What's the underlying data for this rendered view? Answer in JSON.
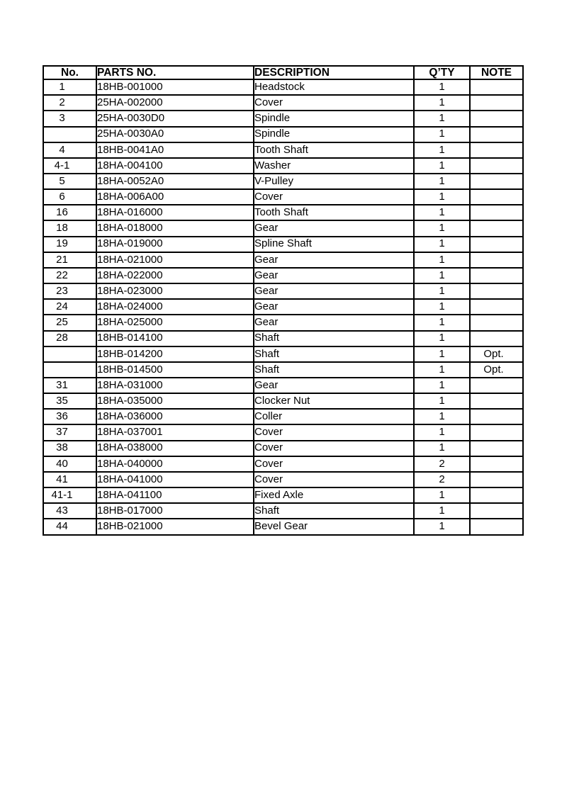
{
  "page": {
    "background_color": "#ffffff",
    "text_color": "#000000",
    "table_border_color": "#000000"
  },
  "table": {
    "headers": [
      "No.",
      "PARTS NO.",
      "DESCRIPTION",
      "Q’TY",
      "NOTE"
    ],
    "rows": [
      {
        "no": "1",
        "part": "18HB-001000",
        "desc": "Headstock",
        "qty": "1",
        "note": ""
      },
      {
        "no": "2",
        "part": "25HA-002000",
        "desc": "Cover",
        "qty": "1",
        "note": ""
      },
      {
        "no": "3",
        "part": "25HA-0030D0",
        "desc": "Spindle",
        "qty": "1",
        "note": ""
      },
      {
        "no": "",
        "part": "25HA-0030A0",
        "desc": "Spindle",
        "qty": "1",
        "note": ""
      },
      {
        "no": "4",
        "part": "18HB-0041A0",
        "desc": "Tooth Shaft",
        "qty": "1",
        "note": ""
      },
      {
        "no": "4-1",
        "part": "18HA-004100",
        "desc": "Washer",
        "qty": "1",
        "note": ""
      },
      {
        "no": "5",
        "part": "18HA-0052A0",
        "desc": "V-Pulley",
        "qty": "1",
        "note": ""
      },
      {
        "no": "6",
        "part": "18HA-006A00",
        "desc": "Cover",
        "qty": "1",
        "note": ""
      },
      {
        "no": "16",
        "part": "18HA-016000",
        "desc": "Tooth Shaft",
        "qty": "1",
        "note": ""
      },
      {
        "no": "18",
        "part": "18HA-018000",
        "desc": "Gear",
        "qty": "1",
        "note": ""
      },
      {
        "no": "19",
        "part": "18HA-019000",
        "desc": "Spline Shaft",
        "qty": "1",
        "note": ""
      },
      {
        "no": "21",
        "part": "18HA-021000",
        "desc": "Gear",
        "qty": "1",
        "note": ""
      },
      {
        "no": "22",
        "part": "18HA-022000",
        "desc": "Gear",
        "qty": "1",
        "note": ""
      },
      {
        "no": "23",
        "part": "18HA-023000",
        "desc": "Gear",
        "qty": "1",
        "note": ""
      },
      {
        "no": "24",
        "part": "18HA-024000",
        "desc": "Gear",
        "qty": "1",
        "note": ""
      },
      {
        "no": "25",
        "part": "18HA-025000",
        "desc": "Gear",
        "qty": "1",
        "note": ""
      },
      {
        "no": "28",
        "part": "18HB-014100",
        "desc": "Shaft",
        "qty": "1",
        "note": ""
      },
      {
        "no": "",
        "part": "18HB-014200",
        "desc": "Shaft",
        "qty": "1",
        "note": "Opt."
      },
      {
        "no": "",
        "part": "18HB-014500",
        "desc": "Shaft",
        "qty": "1",
        "note": "Opt."
      },
      {
        "no": "31",
        "part": "18HA-031000",
        "desc": "Gear",
        "qty": "1",
        "note": ""
      },
      {
        "no": "35",
        "part": "18HA-035000",
        "desc": "Clocker Nut",
        "qty": "1",
        "note": ""
      },
      {
        "no": "36",
        "part": "18HA-036000",
        "desc": "Coller",
        "qty": "1",
        "note": ""
      },
      {
        "no": "37",
        "part": "18HA-037001",
        "desc": "Cover",
        "qty": "1",
        "note": ""
      },
      {
        "no": "38",
        "part": "18HA-038000",
        "desc": "Cover",
        "qty": "1",
        "note": ""
      },
      {
        "no": "40",
        "part": "18HA-040000",
        "desc": "Cover",
        "qty": "2",
        "note": ""
      },
      {
        "no": "41",
        "part": "18HA-041000",
        "desc": "Cover",
        "qty": "2",
        "note": ""
      },
      {
        "no": "41-1",
        "part": "18HA-041100",
        "desc": "Fixed Axle",
        "qty": "1",
        "note": ""
      },
      {
        "no": "43",
        "part": "18HB-017000",
        "desc": "Shaft",
        "qty": "1",
        "note": ""
      },
      {
        "no": "44",
        "part": "18HB-021000",
        "desc": "Bevel Gear",
        "qty": "1",
        "note": ""
      }
    ]
  }
}
